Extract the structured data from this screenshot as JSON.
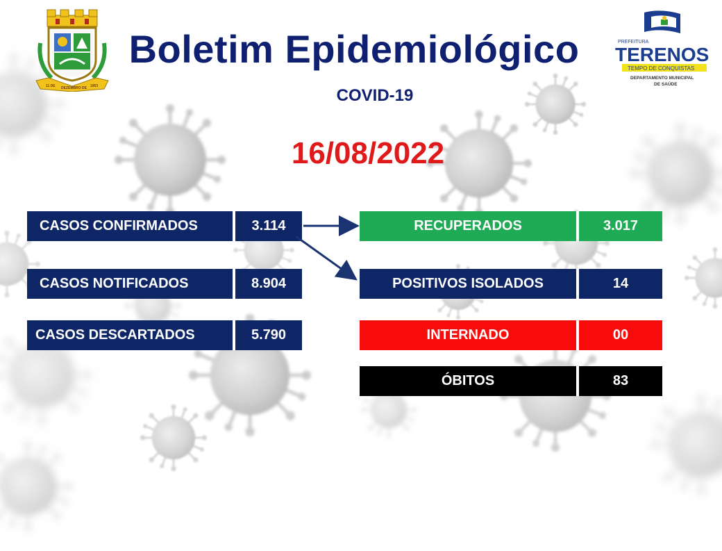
{
  "header": {
    "title": "Boletim Epidemiológico",
    "subtitle": "COVID-19",
    "date": "16/08/2022"
  },
  "crest": {
    "icon": "municipal-coat-of-arms-icon",
    "banner_left": "11 DE",
    "banner_middle": "DEZEMBRO DE",
    "banner_right": "1953"
  },
  "logo": {
    "prefeitura": "PREFEITURA",
    "city": "TERENOS",
    "slogan": "TEMPO DE CONQUISTAS",
    "department_line1": "DEPARTAMENTO MUNICIPAL",
    "department_line2": "DE SAÚDE"
  },
  "left_stats": [
    {
      "label": "CASOS CONFIRMADOS",
      "value": "3.114"
    },
    {
      "label": "CASOS NOTIFICADOS",
      "value": "8.904"
    },
    {
      "label": "CASOS DESCARTADOS",
      "value": "5.790"
    }
  ],
  "right_stats": [
    {
      "label": "RECUPERADOS",
      "value": "3.017",
      "color": "#1faa55"
    },
    {
      "label": "POSITIVOS ISOLADOS",
      "value": "14",
      "color": "#0e2665"
    },
    {
      "label": "INTERNADO",
      "value": "00",
      "color": "#f70b0b"
    },
    {
      "label": "ÓBITOS",
      "value": "83",
      "color": "#000000"
    }
  ],
  "colors": {
    "navy": "#0e2665",
    "title_blue": "#0f2070",
    "date_red": "#e01a1a",
    "virus_gray": "#b8b8b8"
  }
}
